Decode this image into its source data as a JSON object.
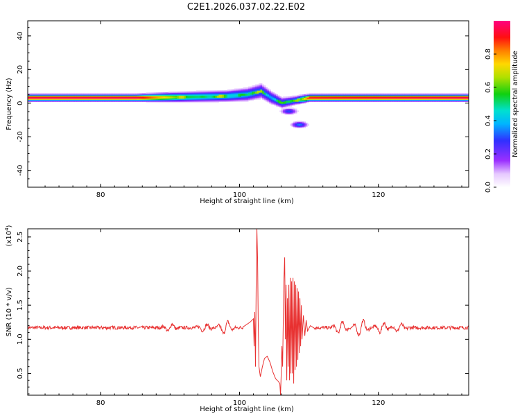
{
  "figure_title": "C2E1.2026.037.02.22.E02",
  "colors": {
    "snr_line": "#e83030",
    "frame": "#000000"
  },
  "chart_data": [
    {
      "type": "heatmap",
      "title": "C2E1.2026.037.02.22.E02",
      "xlabel": "Height of straight line (km)",
      "ylabel": "Frequency (Hz)",
      "xlim": [
        69.5,
        133
      ],
      "ylim": [
        -50,
        49
      ],
      "xticks": [
        80,
        100,
        120
      ],
      "yticks": [
        -40,
        -20,
        0,
        20,
        40
      ],
      "colorbar": {
        "label": "Normalized spectral amplitude",
        "range": [
          0,
          1
        ],
        "ticks": [
          0.0,
          0.2,
          0.4,
          0.6,
          0.8
        ],
        "colormap": "rainbow (white-violet-blue-cyan-green-yellow-orange-red-magenta)"
      },
      "ridge": [
        {
          "x": 70,
          "freq": 3,
          "width": 1.5,
          "amp": 1.0
        },
        {
          "x": 85,
          "freq": 3,
          "width": 1.5,
          "amp": 1.0
        },
        {
          "x": 92,
          "freq": 3.5,
          "width": 2.2,
          "amp": 0.55
        },
        {
          "x": 98,
          "freq": 4,
          "width": 2.5,
          "amp": 0.45
        },
        {
          "x": 101,
          "freq": 5,
          "width": 3,
          "amp": 0.4
        },
        {
          "x": 103,
          "freq": 7,
          "width": 3.5,
          "amp": 0.35
        },
        {
          "x": 104.5,
          "freq": 3,
          "width": 3,
          "amp": 0.35
        },
        {
          "x": 106,
          "freq": 0,
          "width": 2.5,
          "amp": 0.35
        },
        {
          "x": 108,
          "freq": 1.5,
          "width": 2,
          "amp": 0.4
        },
        {
          "x": 110,
          "freq": 3,
          "width": 1.5,
          "amp": 0.95
        },
        {
          "x": 133,
          "freq": 3,
          "width": 1.5,
          "amp": 1.0
        }
      ],
      "blobs": [
        {
          "x": 107,
          "freq": -5,
          "amp": 0.3
        },
        {
          "x": 108.5,
          "freq": -13,
          "amp": 0.35
        }
      ]
    },
    {
      "type": "line",
      "xlabel": "Height of straight line (km)",
      "ylabel": "SNR (10 * v/v)",
      "yscale_label": "(x10",
      "yscale_exponent": "4",
      "y_unit_multiplier": 10000,
      "xlim": [
        69.5,
        133
      ],
      "ylim": [
        0.18,
        2.62
      ],
      "xticks": [
        80,
        100,
        120
      ],
      "yticks": [
        0.5,
        1.0,
        1.5,
        2.0,
        2.5
      ],
      "ytick_labels": [
        "0.5",
        "1.0",
        "1.5",
        "2.0",
        "2.5"
      ],
      "baseline": 1.17,
      "bumps": [
        {
          "x": 90,
          "amp": 0.06
        },
        {
          "x": 95,
          "amp": 0.05
        },
        {
          "x": 98,
          "amp": 0.1
        },
        {
          "x": 114.5,
          "amp": 0.09
        },
        {
          "x": 117.5,
          "amp": 0.12
        },
        {
          "x": 120.5,
          "amp": 0.08
        },
        {
          "x": 123,
          "amp": 0.06
        }
      ],
      "event_points": [
        [
          100.5,
          1.18
        ],
        [
          101.5,
          1.25
        ],
        [
          102.0,
          1.3
        ],
        [
          102.1,
          0.9
        ],
        [
          102.2,
          1.4
        ],
        [
          102.3,
          0.6
        ],
        [
          102.4,
          1.8
        ],
        [
          102.5,
          2.62
        ],
        [
          102.6,
          2.2
        ],
        [
          102.7,
          1.2
        ],
        [
          102.8,
          0.6
        ],
        [
          103.0,
          0.45
        ],
        [
          103.3,
          0.6
        ],
        [
          103.6,
          0.72
        ],
        [
          104.0,
          0.75
        ],
        [
          104.4,
          0.66
        ],
        [
          104.8,
          0.52
        ],
        [
          105.2,
          0.42
        ],
        [
          105.6,
          0.38
        ],
        [
          105.8,
          0.35
        ],
        [
          105.9,
          0.18
        ],
        [
          106.0,
          0.5
        ],
        [
          106.1,
          0.9
        ],
        [
          106.2,
          0.6
        ],
        [
          106.3,
          1.3
        ],
        [
          106.4,
          1.9
        ],
        [
          106.5,
          2.2
        ],
        [
          106.6,
          1.0
        ],
        [
          106.7,
          1.8
        ],
        [
          106.8,
          0.4
        ],
        [
          106.9,
          1.6
        ],
        [
          107.0,
          0.6
        ],
        [
          107.1,
          1.8
        ],
        [
          107.2,
          0.4
        ],
        [
          107.3,
          1.9
        ],
        [
          107.4,
          0.5
        ],
        [
          107.5,
          1.85
        ],
        [
          107.6,
          0.5
        ],
        [
          107.7,
          1.9
        ],
        [
          107.8,
          0.35
        ],
        [
          107.9,
          1.85
        ],
        [
          108.0,
          0.55
        ],
        [
          108.1,
          1.8
        ],
        [
          108.2,
          0.6
        ],
        [
          108.3,
          1.75
        ],
        [
          108.4,
          0.7
        ],
        [
          108.5,
          1.7
        ],
        [
          108.6,
          0.8
        ],
        [
          108.7,
          1.6
        ],
        [
          108.8,
          0.9
        ],
        [
          108.9,
          1.5
        ],
        [
          109.0,
          1.0
        ],
        [
          109.2,
          1.35
        ],
        [
          109.4,
          1.05
        ],
        [
          109.6,
          1.28
        ],
        [
          109.8,
          1.12
        ],
        [
          110.2,
          1.2
        ],
        [
          110.8,
          1.16
        ]
      ]
    }
  ]
}
